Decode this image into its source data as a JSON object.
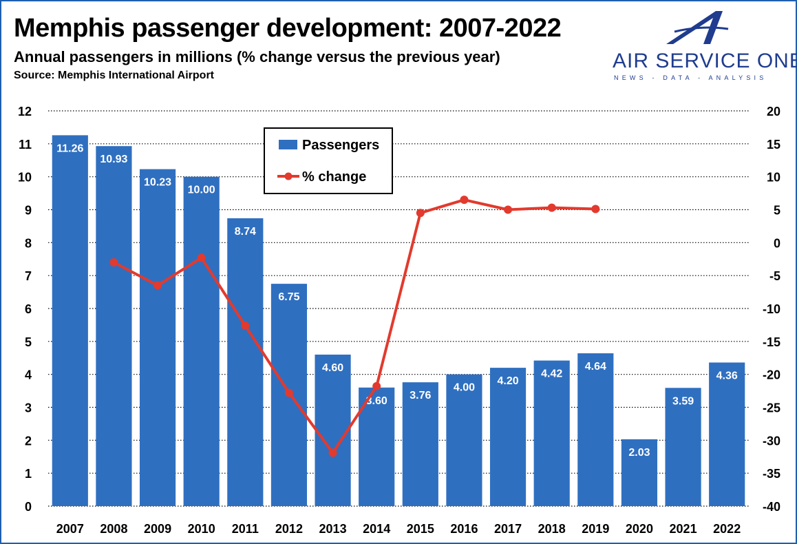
{
  "header": {
    "title": "Memphis passenger development: 2007-2022",
    "subtitle": "Annual passengers in millions (% change versus the previous year)",
    "source": "Source: Memphis International Airport"
  },
  "logo": {
    "name": "AIR SERVICE ONE",
    "tagline": "NEWS - DATA - ANALYSIS",
    "icon": "stylized-letter-a-icon"
  },
  "colors": {
    "bar": "#2f6fc0",
    "line": "#e23a2e",
    "frame": "#1e5fb0",
    "logo": "#1f3c8f"
  },
  "chart_data": {
    "type": "bar",
    "categories": [
      "2007",
      "2008",
      "2009",
      "2010",
      "2011",
      "2012",
      "2013",
      "2014",
      "2015",
      "2016",
      "2017",
      "2018",
      "2019",
      "2020",
      "2021",
      "2022"
    ],
    "series": [
      {
        "name": "Passengers",
        "type": "bar",
        "axis": "left",
        "values": [
          11.26,
          10.93,
          10.23,
          10.0,
          8.74,
          6.75,
          4.6,
          3.6,
          3.76,
          4.0,
          4.2,
          4.42,
          4.64,
          2.03,
          3.59,
          4.36
        ],
        "labels": [
          "11.26",
          "10.93",
          "10.23",
          "10.00",
          "8.74",
          "6.75",
          "4.60",
          "3.60",
          "3.76",
          "4.00",
          "4.20",
          "4.42",
          "4.64",
          "2.03",
          "3.59",
          "4.36"
        ]
      },
      {
        "name": "% change",
        "type": "line",
        "axis": "right",
        "values": [
          null,
          -3.0,
          -6.5,
          -2.3,
          -12.6,
          -22.8,
          -31.9,
          -21.8,
          4.5,
          6.5,
          5.0,
          5.3,
          5.1,
          null,
          null,
          null
        ]
      }
    ],
    "y_left": {
      "min": 0,
      "max": 12,
      "ticks": [
        "0",
        "1",
        "2",
        "3",
        "4",
        "5",
        "6",
        "7",
        "8",
        "9",
        "10",
        "11",
        "12"
      ]
    },
    "y_right": {
      "min": -40,
      "max": 20,
      "ticks": [
        "-40",
        "-35",
        "-30",
        "-25",
        "-20",
        "-15",
        "-10",
        "-5",
        "0",
        "5",
        "10",
        "15",
        "20"
      ]
    },
    "grid": "horizontal dotted",
    "legend": {
      "position": "top-center",
      "entries": [
        "Passengers",
        "% change"
      ]
    }
  }
}
